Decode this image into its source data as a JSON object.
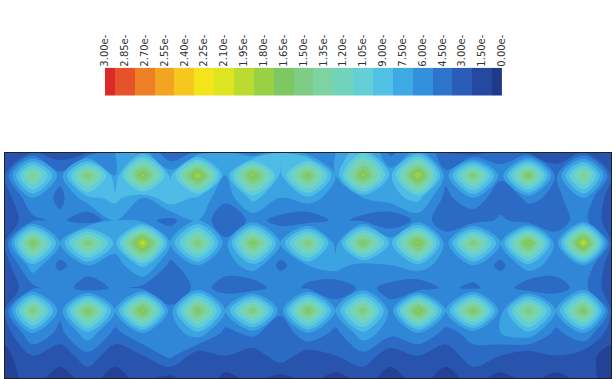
{
  "chart_data": {
    "type": "contour",
    "tick_labels": false,
    "xlim": [
      0,
      22
    ],
    "ylim": [
      0,
      10
    ],
    "x": [
      0,
      1,
      2,
      3,
      4,
      5,
      6,
      7,
      8,
      9,
      10,
      11,
      12,
      13,
      14,
      15,
      16,
      17,
      18,
      19,
      20,
      21,
      22
    ],
    "y": [
      10,
      9,
      8,
      7,
      6,
      5,
      4,
      3,
      2,
      1,
      0
    ],
    "z": [
      [
        0.02,
        0.03,
        0.02,
        0.03,
        0.06,
        0.07,
        0.03,
        0.05,
        0.07,
        0.04,
        0.08,
        0.05,
        0.06,
        0.09,
        0.04,
        0.07,
        0.03,
        0.02,
        0.04,
        0.03,
        0.02,
        0.03,
        0.02
      ],
      [
        0.03,
        0.14,
        0.05,
        0.15,
        0.06,
        0.17,
        0.07,
        0.18,
        0.06,
        0.17,
        0.07,
        0.16,
        0.06,
        0.17,
        0.07,
        0.18,
        0.05,
        0.15,
        0.05,
        0.16,
        0.04,
        0.14,
        0.03
      ],
      [
        0.02,
        0.06,
        0.04,
        0.07,
        0.08,
        0.06,
        0.09,
        0.07,
        0.05,
        0.08,
        0.06,
        0.07,
        0.05,
        0.06,
        0.07,
        0.08,
        0.04,
        0.06,
        0.03,
        0.05,
        0.04,
        0.06,
        0.02
      ],
      [
        0.02,
        0.04,
        0.05,
        0.03,
        0.06,
        0.05,
        0.04,
        0.06,
        0.03,
        0.05,
        0.04,
        0.03,
        0.05,
        0.04,
        0.03,
        0.05,
        0.04,
        0.03,
        0.05,
        0.03,
        0.04,
        0.05,
        0.02
      ],
      [
        0.03,
        0.16,
        0.06,
        0.15,
        0.07,
        0.19,
        0.06,
        0.15,
        0.05,
        0.16,
        0.06,
        0.15,
        0.05,
        0.16,
        0.07,
        0.17,
        0.05,
        0.15,
        0.06,
        0.17,
        0.05,
        0.19,
        0.03
      ],
      [
        0.02,
        0.07,
        0.04,
        0.06,
        0.05,
        0.08,
        0.04,
        0.06,
        0.05,
        0.07,
        0.04,
        0.06,
        0.07,
        0.05,
        0.06,
        0.07,
        0.05,
        0.06,
        0.04,
        0.07,
        0.05,
        0.06,
        0.02
      ],
      [
        0.02,
        0.04,
        0.06,
        0.03,
        0.05,
        0.04,
        0.03,
        0.05,
        0.04,
        0.03,
        0.06,
        0.04,
        0.03,
        0.05,
        0.04,
        0.03,
        0.05,
        0.04,
        0.06,
        0.03,
        0.04,
        0.05,
        0.02
      ],
      [
        0.03,
        0.15,
        0.05,
        0.16,
        0.06,
        0.17,
        0.05,
        0.16,
        0.06,
        0.15,
        0.05,
        0.16,
        0.06,
        0.15,
        0.05,
        0.17,
        0.06,
        0.16,
        0.05,
        0.15,
        0.06,
        0.16,
        0.03
      ],
      [
        0.02,
        0.06,
        0.04,
        0.07,
        0.04,
        0.06,
        0.05,
        0.07,
        0.04,
        0.05,
        0.03,
        0.06,
        0.04,
        0.07,
        0.05,
        0.06,
        0.04,
        0.05,
        0.06,
        0.07,
        0.04,
        0.06,
        0.02
      ],
      [
        0.01,
        0.03,
        0.02,
        0.04,
        0.02,
        0.03,
        0.05,
        0.02,
        0.03,
        0.02,
        0.04,
        0.02,
        0.03,
        0.04,
        0.02,
        0.03,
        0.02,
        0.04,
        0.03,
        0.02,
        0.03,
        0.02,
        0.01
      ],
      [
        0.01,
        0.02,
        0.01,
        0.02,
        0.01,
        0.02,
        0.01,
        0.03,
        0.01,
        0.02,
        0.01,
        0.02,
        0.01,
        0.02,
        0.01,
        0.02,
        0.01,
        0.02,
        0.01,
        0.02,
        0.01,
        0.02,
        0.01
      ]
    ],
    "colorbar": {
      "range": [
        0,
        0.3
      ],
      "ticks": [
        {
          "value": 0.3,
          "label": "3.00e-"
        },
        {
          "value": 0.285,
          "label": "2.85e-"
        },
        {
          "value": 0.27,
          "label": "2.70e-"
        },
        {
          "value": 0.255,
          "label": "2.55e-"
        },
        {
          "value": 0.24,
          "label": "2.40e-"
        },
        {
          "value": 0.225,
          "label": "2.25e-"
        },
        {
          "value": 0.21,
          "label": "2.10e-"
        },
        {
          "value": 0.195,
          "label": "1.95e-"
        },
        {
          "value": 0.18,
          "label": "1.80e-"
        },
        {
          "value": 0.165,
          "label": "1.65e-"
        },
        {
          "value": 0.15,
          "label": "1.50e-"
        },
        {
          "value": 0.135,
          "label": "1.35e-"
        },
        {
          "value": 0.12,
          "label": "1.20e-"
        },
        {
          "value": 0.105,
          "label": "1.05e-"
        },
        {
          "value": 0.09,
          "label": "9.00e-"
        },
        {
          "value": 0.075,
          "label": "7.50e-"
        },
        {
          "value": 0.06,
          "label": "6.00e-"
        },
        {
          "value": 0.045,
          "label": "4.50e-"
        },
        {
          "value": 0.03,
          "label": "3.00e-"
        },
        {
          "value": 0.015,
          "label": "1.50e-"
        },
        {
          "value": 0,
          "label": "0.00e-"
        }
      ]
    }
  }
}
